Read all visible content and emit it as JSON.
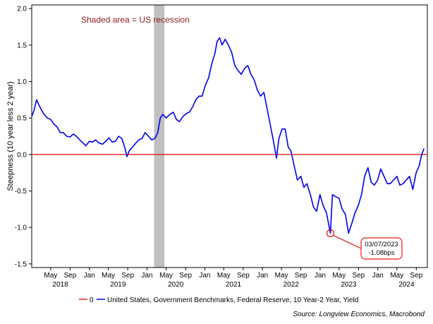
{
  "chart_data": {
    "type": "line",
    "ylabel": "Steepness (10 year less 2 year)",
    "ylim": [
      -1.55,
      2.05
    ],
    "yticks": [
      2.0,
      1.5,
      1.0,
      0.5,
      0.0,
      -0.5,
      -1.0,
      -1.5
    ],
    "ytick_labels": [
      "2.0",
      "1.5",
      "1.0",
      "0.5",
      "0.0",
      "-0.5",
      "-1.0",
      "-1.5"
    ],
    "xlim": [
      "2018-01-01",
      "2024-11-10"
    ],
    "month_ticks": [
      {
        "date": "2018-05-01",
        "label": "May"
      },
      {
        "date": "2018-09-01",
        "label": "Sep"
      },
      {
        "date": "2019-01-01",
        "label": "Jan"
      },
      {
        "date": "2019-05-01",
        "label": "May"
      },
      {
        "date": "2019-09-01",
        "label": "Sep"
      },
      {
        "date": "2020-01-01",
        "label": "Jan"
      },
      {
        "date": "2020-05-01",
        "label": "May"
      },
      {
        "date": "2020-09-01",
        "label": "Sep"
      },
      {
        "date": "2021-01-01",
        "label": "Jan"
      },
      {
        "date": "2021-05-01",
        "label": "May"
      },
      {
        "date": "2021-09-01",
        "label": "Sep"
      },
      {
        "date": "2022-01-01",
        "label": "Jan"
      },
      {
        "date": "2022-05-01",
        "label": "May"
      },
      {
        "date": "2022-09-01",
        "label": "Sep"
      },
      {
        "date": "2023-01-01",
        "label": "Jan"
      },
      {
        "date": "2023-05-01",
        "label": "May"
      },
      {
        "date": "2023-09-01",
        "label": "Sep"
      },
      {
        "date": "2024-01-01",
        "label": "Jan"
      },
      {
        "date": "2024-05-01",
        "label": "May"
      },
      {
        "date": "2024-09-01",
        "label": "Sep"
      }
    ],
    "year_labels": [
      {
        "date": "2018-07-01",
        "label": "2018"
      },
      {
        "date": "2019-07-01",
        "label": "2019"
      },
      {
        "date": "2020-07-01",
        "label": "2020"
      },
      {
        "date": "2021-07-01",
        "label": "2021"
      },
      {
        "date": "2022-07-01",
        "label": "2022"
      },
      {
        "date": "2023-07-01",
        "label": "2023"
      },
      {
        "date": "2024-07-01",
        "label": "2024"
      }
    ],
    "recession": {
      "start": "2020-02-15",
      "end": "2020-04-20",
      "color": "#c0c0c0"
    },
    "annotation": "Shaded area = US recession",
    "callout": {
      "date": "2023-03-07",
      "value": -1.08,
      "line1": "03/07/2023",
      "line2": "-1.08bps"
    },
    "series": [
      {
        "name": "0",
        "color": "#e41a1c",
        "x": [
          "2018-01-01",
          "2024-11-10"
        ],
        "y": [
          0.0,
          0.0
        ]
      },
      {
        "name": "United States, Government Benchmarks, Federal Reserve, 10 Year-2 Year, Yield",
        "color": "#0000ee",
        "x": [
          "2018-01-01",
          "2018-01-15",
          "2018-02-01",
          "2018-02-15",
          "2018-03-01",
          "2018-03-20",
          "2018-04-10",
          "2018-05-01",
          "2018-05-20",
          "2018-06-10",
          "2018-07-01",
          "2018-07-20",
          "2018-08-10",
          "2018-09-01",
          "2018-09-20",
          "2018-10-10",
          "2018-11-01",
          "2018-11-20",
          "2018-12-10",
          "2019-01-01",
          "2019-01-20",
          "2019-02-10",
          "2019-03-01",
          "2019-03-25",
          "2019-04-15",
          "2019-05-05",
          "2019-05-25",
          "2019-06-15",
          "2019-07-05",
          "2019-07-25",
          "2019-08-15",
          "2019-08-27",
          "2019-09-10",
          "2019-09-30",
          "2019-10-20",
          "2019-11-10",
          "2019-12-01",
          "2019-12-20",
          "2020-01-10",
          "2020-01-31",
          "2020-02-20",
          "2020-03-09",
          "2020-03-25",
          "2020-04-10",
          "2020-05-01",
          "2020-05-25",
          "2020-06-15",
          "2020-07-05",
          "2020-07-25",
          "2020-08-15",
          "2020-09-05",
          "2020-09-25",
          "2020-10-15",
          "2020-11-05",
          "2020-11-25",
          "2020-12-15",
          "2021-01-05",
          "2021-01-25",
          "2021-02-15",
          "2021-03-05",
          "2021-03-20",
          "2021-04-05",
          "2021-04-20",
          "2021-05-10",
          "2021-05-30",
          "2021-06-20",
          "2021-07-10",
          "2021-07-30",
          "2021-08-20",
          "2021-09-10",
          "2021-09-30",
          "2021-10-20",
          "2021-11-10",
          "2021-11-30",
          "2021-12-20",
          "2022-01-10",
          "2022-01-31",
          "2022-02-20",
          "2022-03-10",
          "2022-03-31",
          "2022-04-15",
          "2022-05-05",
          "2022-05-25",
          "2022-06-13",
          "2022-06-30",
          "2022-07-20",
          "2022-08-10",
          "2022-09-01",
          "2022-09-20",
          "2022-10-10",
          "2022-10-31",
          "2022-11-20",
          "2022-12-10",
          "2022-12-31",
          "2023-01-20",
          "2023-02-10",
          "2023-03-07",
          "2023-03-20",
          "2023-04-10",
          "2023-05-01",
          "2023-05-20",
          "2023-06-10",
          "2023-06-30",
          "2023-07-20",
          "2023-08-10",
          "2023-08-31",
          "2023-09-20",
          "2023-10-10",
          "2023-10-31",
          "2023-11-20",
          "2023-12-10",
          "2023-12-31",
          "2024-01-20",
          "2024-02-10",
          "2024-03-01",
          "2024-03-20",
          "2024-04-10",
          "2024-05-01",
          "2024-05-20",
          "2024-06-10",
          "2024-06-30",
          "2024-07-20",
          "2024-08-10",
          "2024-08-31",
          "2024-09-20",
          "2024-10-05",
          "2024-10-20"
        ],
        "y": [
          0.52,
          0.6,
          0.75,
          0.68,
          0.62,
          0.55,
          0.5,
          0.48,
          0.42,
          0.38,
          0.3,
          0.3,
          0.25,
          0.24,
          0.28,
          0.25,
          0.2,
          0.16,
          0.12,
          0.18,
          0.17,
          0.2,
          0.16,
          0.14,
          0.18,
          0.23,
          0.17,
          0.18,
          0.25,
          0.22,
          0.08,
          -0.03,
          0.05,
          0.1,
          0.15,
          0.2,
          0.22,
          0.3,
          0.25,
          0.2,
          0.22,
          0.3,
          0.5,
          0.55,
          0.5,
          0.55,
          0.58,
          0.48,
          0.45,
          0.52,
          0.56,
          0.58,
          0.65,
          0.75,
          0.8,
          0.8,
          0.95,
          1.05,
          1.25,
          1.38,
          1.55,
          1.6,
          1.5,
          1.58,
          1.5,
          1.4,
          1.22,
          1.15,
          1.1,
          1.18,
          1.22,
          1.1,
          1.02,
          0.88,
          0.8,
          0.85,
          0.62,
          0.4,
          0.2,
          -0.05,
          0.22,
          0.35,
          0.35,
          0.1,
          0.05,
          -0.15,
          -0.35,
          -0.3,
          -0.45,
          -0.4,
          -0.55,
          -0.72,
          -0.78,
          -0.55,
          -0.7,
          -0.8,
          -1.08,
          -0.55,
          -0.58,
          -0.6,
          -0.75,
          -0.82,
          -1.08,
          -0.95,
          -0.8,
          -0.7,
          -0.55,
          -0.3,
          -0.18,
          -0.38,
          -0.42,
          -0.35,
          -0.2,
          -0.3,
          -0.4,
          -0.4,
          -0.35,
          -0.3,
          -0.42,
          -0.4,
          -0.35,
          -0.3,
          -0.48,
          -0.25,
          -0.15,
          0.0,
          0.08
        ]
      }
    ],
    "legend": {
      "zero_label": "0",
      "series_label": "United States, Government Benchmarks, Federal Reserve, 10 Year-2 Year, Yield"
    },
    "source": "Source: Longview Economics, Macrobond"
  }
}
